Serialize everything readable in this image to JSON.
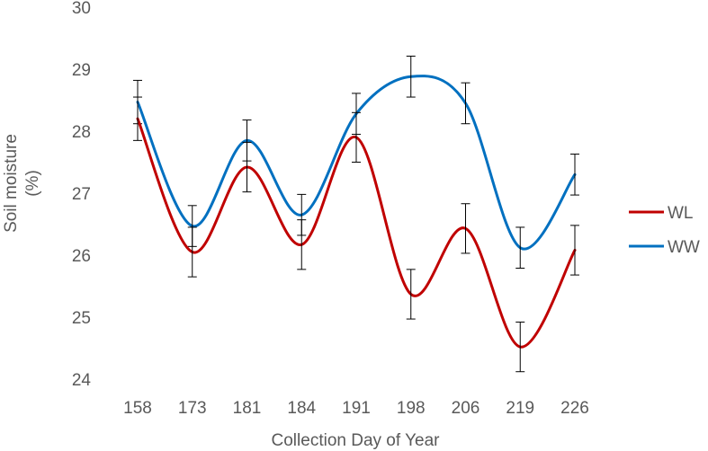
{
  "chart_data": {
    "type": "line",
    "title": "",
    "xlabel": "Collection Day of Year",
    "ylabel_line1": "Soil moisture",
    "ylabel_line2": "(%)",
    "categories": [
      "158",
      "173",
      "181",
      "184",
      "191",
      "198",
      "206",
      "219",
      "226"
    ],
    "ylim": [
      24,
      30
    ],
    "yticks": [
      24,
      25,
      26,
      27,
      28,
      29,
      30
    ],
    "grid": false,
    "legend": "right",
    "smooth": true,
    "error_bars": true,
    "series": [
      {
        "name": "WL",
        "color": "#c00000",
        "values": [
          28.2,
          26.05,
          27.42,
          26.17,
          27.9,
          25.37,
          26.43,
          24.52,
          26.08
        ],
        "errors": [
          0.35,
          0.4,
          0.4,
          0.4,
          0.4,
          0.4,
          0.4,
          0.4,
          0.4
        ]
      },
      {
        "name": "WW",
        "color": "#0070c0",
        "values": [
          28.47,
          26.47,
          27.85,
          26.65,
          28.28,
          28.88,
          28.45,
          26.12,
          27.3
        ],
        "errors": [
          0.35,
          0.33,
          0.33,
          0.33,
          0.33,
          0.33,
          0.33,
          0.33,
          0.33
        ]
      }
    ]
  }
}
